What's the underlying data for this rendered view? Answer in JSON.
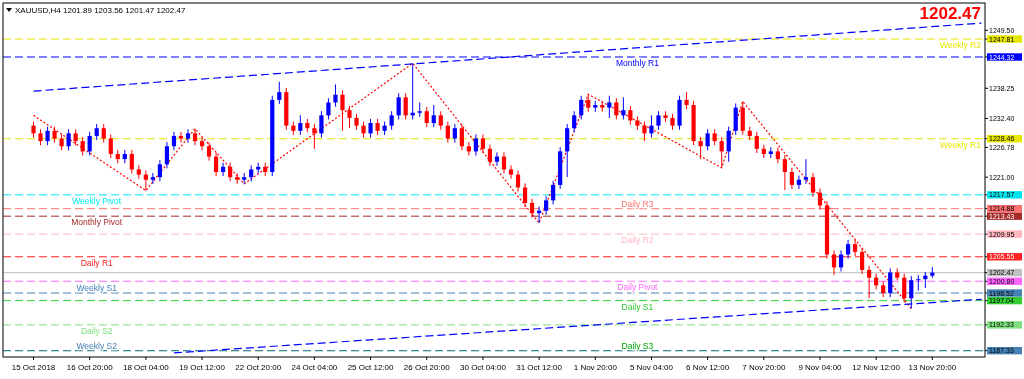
{
  "chart_data": {
    "type": "candlestick",
    "title": "XAUUSD,H4  1201.89 1203.56 1201.47 1202.47",
    "annotations": [
      "1202.47"
    ],
    "categories": [
      "15 Oct 2018",
      null,
      null,
      null,
      null,
      null,
      null,
      null,
      "16 Oct 20:00",
      null,
      null,
      null,
      null,
      null,
      null,
      null,
      "18 Oct 04:00",
      null,
      null,
      null,
      null,
      null,
      null,
      null,
      "19 Oct 12:00",
      null,
      null,
      null,
      null,
      null,
      null,
      null,
      "22 Oct 20:00",
      null,
      null,
      null,
      null,
      null,
      null,
      null,
      "24 Oct 04:00",
      null,
      null,
      null,
      null,
      null,
      null,
      null,
      "25 Oct 12:00",
      null,
      null,
      null,
      null,
      null,
      null,
      null,
      "26 Oct 20:00",
      null,
      null,
      null,
      null,
      null,
      null,
      null,
      "30 Oct 04:00",
      null,
      null,
      null,
      null,
      null,
      null,
      null,
      "31 Oct 12:00",
      null,
      null,
      null,
      null,
      null,
      null,
      null,
      "1 Nov 20:00",
      null,
      null,
      null,
      null,
      null,
      null,
      null,
      "5 Nov 04:00",
      null,
      null,
      null,
      null,
      null,
      null,
      null,
      "6 Nov 12:00",
      null,
      null,
      null,
      null,
      null,
      null,
      null,
      "7 Nov 20:00",
      null,
      null,
      null,
      null,
      null,
      null,
      null,
      "9 Nov 04:00",
      null,
      null,
      null,
      null,
      null,
      null,
      null,
      "12 Nov 12:00",
      null,
      null,
      null,
      null,
      null,
      null,
      null,
      "13 Nov 20:00",
      null,
      null,
      null,
      null,
      null,
      null,
      null
    ],
    "ohlc": [
      [
        1231.0,
        1231.8,
        1228.7,
        1229.5
      ],
      [
        1229.5,
        1230.3,
        1227.2,
        1228.0
      ],
      [
        1228.0,
        1230.8,
        1227.2,
        1230.0
      ],
      [
        1230.0,
        1230.8,
        1227.7,
        1228.5
      ],
      [
        1228.5,
        1229.3,
        1226.2,
        1227.0
      ],
      [
        1227.0,
        1230.3,
        1226.2,
        1229.5
      ],
      [
        1229.5,
        1230.3,
        1227.2,
        1228.0
      ],
      [
        1228.0,
        1228.8,
        1225.2,
        1226.0
      ],
      [
        1226.0,
        1229.8,
        1225.2,
        1229.0
      ],
      [
        1229.0,
        1231.3,
        1228.2,
        1230.5
      ],
      [
        1230.5,
        1231.3,
        1227.7,
        1228.5
      ],
      [
        1228.5,
        1229.3,
        1224.7,
        1225.5
      ],
      [
        1225.5,
        1226.3,
        1223.7,
        1224.5
      ],
      [
        1224.5,
        1226.3,
        1223.7,
        1225.5
      ],
      [
        1225.5,
        1226.3,
        1221.7,
        1222.5
      ],
      [
        1222.5,
        1223.3,
        1220.7,
        1221.5
      ],
      [
        1221.5,
        1222.3,
        1218.4,
        1220.5
      ],
      [
        1220.5,
        1221.8,
        1219.7,
        1221.0
      ],
      [
        1221.0,
        1224.3,
        1220.2,
        1223.5
      ],
      [
        1223.5,
        1227.8,
        1222.7,
        1227.0
      ],
      [
        1227.0,
        1229.8,
        1226.2,
        1229.0
      ],
      [
        1229.0,
        1229.8,
        1227.7,
        1228.5
      ],
      [
        1228.5,
        1230.3,
        1227.7,
        1229.5
      ],
      [
        1229.5,
        1230.4,
        1227.2,
        1228.0
      ],
      [
        1228.0,
        1228.8,
        1226.2,
        1227.0
      ],
      [
        1227.0,
        1227.8,
        1224.2,
        1225.0
      ],
      [
        1225.0,
        1225.8,
        1221.2,
        1222.0
      ],
      [
        1222.0,
        1223.8,
        1221.2,
        1223.0
      ],
      [
        1223.0,
        1223.8,
        1220.2,
        1221.0
      ],
      [
        1221.0,
        1221.8,
        1219.7,
        1220.5
      ],
      [
        1220.5,
        1221.8,
        1219.7,
        1221.0
      ],
      [
        1221.0,
        1223.3,
        1220.2,
        1222.5
      ],
      [
        1222.5,
        1223.8,
        1221.7,
        1223.0
      ],
      [
        1223.0,
        1223.8,
        1221.2,
        1222.0
      ],
      [
        1222.0,
        1236.8,
        1221.2,
        1236.0
      ],
      [
        1236.0,
        1239.5,
        1235.2,
        1237.5
      ],
      [
        1237.5,
        1238.3,
        1230.2,
        1231.0
      ],
      [
        1231.0,
        1231.8,
        1229.2,
        1230.0
      ],
      [
        1230.0,
        1233.0,
        1229.2,
        1231.5
      ],
      [
        1231.5,
        1232.3,
        1229.7,
        1230.5
      ],
      [
        1230.5,
        1231.3,
        1226.5,
        1229.5
      ],
      [
        1229.5,
        1233.8,
        1228.7,
        1233.0
      ],
      [
        1233.0,
        1236.3,
        1232.2,
        1235.5
      ],
      [
        1235.5,
        1239.0,
        1234.7,
        1237.0
      ],
      [
        1237.0,
        1237.8,
        1230.0,
        1234.0
      ],
      [
        1234.0,
        1234.8,
        1230.5,
        1232.5
      ],
      [
        1232.5,
        1233.3,
        1230.2,
        1231.0
      ],
      [
        1231.0,
        1231.8,
        1228.7,
        1229.5
      ],
      [
        1229.5,
        1232.3,
        1228.7,
        1231.5
      ],
      [
        1231.5,
        1232.3,
        1229.2,
        1230.0
      ],
      [
        1230.0,
        1231.8,
        1229.2,
        1231.0
      ],
      [
        1231.0,
        1233.8,
        1230.2,
        1233.0
      ],
      [
        1233.0,
        1237.3,
        1232.2,
        1236.5
      ],
      [
        1236.5,
        1237.3,
        1232.2,
        1233.0
      ],
      [
        1233.0,
        1243.1,
        1232.2,
        1233.5
      ],
      [
        1233.5,
        1235.5,
        1232.7,
        1233.8
      ],
      [
        1233.8,
        1234.6,
        1230.7,
        1231.5
      ],
      [
        1231.5,
        1235.0,
        1230.7,
        1233.0
      ],
      [
        1233.0,
        1233.8,
        1230.2,
        1231.0
      ],
      [
        1231.0,
        1231.8,
        1227.7,
        1228.5
      ],
      [
        1228.5,
        1231.3,
        1227.7,
        1230.5
      ],
      [
        1230.5,
        1231.3,
        1226.2,
        1227.0
      ],
      [
        1227.0,
        1227.8,
        1225.2,
        1226.0
      ],
      [
        1226.0,
        1229.3,
        1225.2,
        1228.5
      ],
      [
        1228.5,
        1229.3,
        1225.7,
        1226.5
      ],
      [
        1226.5,
        1227.3,
        1223.2,
        1224.0
      ],
      [
        1224.0,
        1225.8,
        1223.2,
        1225.0
      ],
      [
        1225.0,
        1225.8,
        1221.7,
        1222.5
      ],
      [
        1222.5,
        1223.3,
        1220.7,
        1221.5
      ],
      [
        1221.5,
        1222.3,
        1218.2,
        1219.0
      ],
      [
        1219.0,
        1219.8,
        1215.2,
        1216.0
      ],
      [
        1216.0,
        1216.8,
        1213.2,
        1214.0
      ],
      [
        1214.0,
        1215.3,
        1212.1,
        1214.5
      ],
      [
        1214.5,
        1217.3,
        1213.7,
        1216.5
      ],
      [
        1216.5,
        1220.3,
        1215.7,
        1219.5
      ],
      [
        1219.5,
        1226.8,
        1218.7,
        1226.0
      ],
      [
        1226.0,
        1231.3,
        1221.0,
        1230.5
      ],
      [
        1230.5,
        1233.8,
        1229.7,
        1233.0
      ],
      [
        1233.0,
        1236.8,
        1232.2,
        1236.0
      ],
      [
        1236.0,
        1237.1,
        1233.7,
        1234.5
      ],
      [
        1234.5,
        1235.8,
        1233.7,
        1235.0
      ],
      [
        1235.0,
        1235.8,
        1233.7,
        1234.5
      ],
      [
        1234.5,
        1236.8,
        1232.5,
        1235.5
      ],
      [
        1235.5,
        1236.3,
        1232.2,
        1233.0
      ],
      [
        1233.0,
        1236.5,
        1232.2,
        1234.0
      ],
      [
        1234.0,
        1234.8,
        1231.2,
        1232.0
      ],
      [
        1232.0,
        1232.8,
        1230.2,
        1231.0
      ],
      [
        1231.0,
        1231.8,
        1228.0,
        1229.5
      ],
      [
        1229.5,
        1233.0,
        1228.7,
        1231.0
      ],
      [
        1231.0,
        1233.8,
        1230.2,
        1233.0
      ],
      [
        1233.0,
        1233.8,
        1231.7,
        1232.5
      ],
      [
        1232.5,
        1233.3,
        1230.2,
        1231.0
      ],
      [
        1231.0,
        1236.8,
        1230.2,
        1236.0
      ],
      [
        1236.0,
        1237.5,
        1234.2,
        1235.0
      ],
      [
        1235.0,
        1235.8,
        1227.2,
        1228.0
      ],
      [
        1228.0,
        1228.8,
        1224.5,
        1227.0
      ],
      [
        1227.0,
        1230.3,
        1226.2,
        1229.5
      ],
      [
        1229.5,
        1230.3,
        1227.2,
        1228.0
      ],
      [
        1228.0,
        1228.8,
        1222.8,
        1226.0
      ],
      [
        1226.0,
        1230.8,
        1224.0,
        1230.0
      ],
      [
        1230.0,
        1235.3,
        1229.2,
        1234.5
      ],
      [
        1234.5,
        1235.7,
        1229.2,
        1230.0
      ],
      [
        1230.0,
        1230.8,
        1228.2,
        1229.0
      ],
      [
        1229.0,
        1229.8,
        1225.7,
        1226.5
      ],
      [
        1226.5,
        1227.3,
        1224.7,
        1225.5
      ],
      [
        1225.5,
        1226.8,
        1224.7,
        1226.0
      ],
      [
        1226.0,
        1226.8,
        1223.7,
        1224.5
      ],
      [
        1224.5,
        1225.3,
        1218.5,
        1222.0
      ],
      [
        1222.0,
        1222.8,
        1218.7,
        1219.5
      ],
      [
        1219.5,
        1221.3,
        1218.7,
        1220.5
      ],
      [
        1220.5,
        1224.5,
        1219.7,
        1221.0
      ],
      [
        1221.0,
        1221.8,
        1217.2,
        1218.0
      ],
      [
        1218.0,
        1218.8,
        1214.7,
        1215.5
      ],
      [
        1215.5,
        1216.3,
        1205.2,
        1206.0
      ],
      [
        1206.0,
        1206.8,
        1202.0,
        1203.5
      ],
      [
        1203.5,
        1206.8,
        1202.7,
        1206.0
      ],
      [
        1206.0,
        1208.8,
        1205.2,
        1208.0
      ],
      [
        1208.0,
        1208.8,
        1205.7,
        1206.5
      ],
      [
        1206.5,
        1207.3,
        1202.2,
        1203.0
      ],
      [
        1203.0,
        1203.8,
        1197.5,
        1201.5
      ],
      [
        1201.5,
        1202.3,
        1199.2,
        1200.0
      ],
      [
        1200.0,
        1200.8,
        1197.7,
        1198.5
      ],
      [
        1198.5,
        1203.3,
        1197.7,
        1202.5
      ],
      [
        1202.5,
        1203.3,
        1201.0,
        1201.5
      ],
      [
        1201.5,
        1202.3,
        1196.7,
        1197.5
      ],
      [
        1197.5,
        1201.8,
        1195.5,
        1201.0
      ],
      [
        1201.0,
        1202.0,
        1199.0,
        1201.2
      ],
      [
        1201.2,
        1202.6,
        1199.5,
        1201.89
      ],
      [
        1201.89,
        1203.56,
        1201.47,
        1202.47
      ],
      null,
      null,
      null,
      null,
      null,
      null,
      null
    ],
    "colors": [
      "#ff0000",
      "#ff0000",
      "#0000ff",
      "#ff0000",
      "#ff0000",
      "#0000ff",
      "#ff0000",
      "#ff0000",
      "#0000ff",
      "#0000ff",
      "#ff0000",
      "#ff0000",
      "#ff0000",
      "#0000ff",
      "#ff0000",
      "#ff0000",
      "#ff0000",
      "#0000ff",
      "#0000ff",
      "#0000ff",
      "#0000ff",
      "#ff0000",
      "#0000ff",
      "#ff0000",
      "#ff0000",
      "#ff0000",
      "#ff0000",
      "#0000ff",
      "#ff0000",
      "#ff0000",
      "#0000ff",
      "#0000ff",
      "#0000ff",
      "#ff0000",
      "#0000ff",
      "#0000ff",
      "#ff0000",
      "#ff0000",
      "#0000ff",
      "#ff0000",
      "#ff0000",
      "#0000ff",
      "#0000ff",
      "#0000ff",
      "#ff0000",
      "#ff0000",
      "#ff0000",
      "#ff0000",
      "#0000ff",
      "#ff0000",
      "#0000ff",
      "#0000ff",
      "#0000ff",
      "#ff0000",
      "#0000ff",
      "#0000ff",
      "#ff0000",
      "#0000ff",
      "#ff0000",
      "#ff0000",
      "#0000ff",
      "#ff0000",
      "#ff0000",
      "#0000ff",
      "#ff0000",
      "#ff0000",
      "#0000ff",
      "#ff0000",
      "#ff0000",
      "#ff0000",
      "#ff0000",
      "#ff0000",
      "#0000ff",
      "#0000ff",
      "#0000ff",
      "#0000ff",
      "#0000ff",
      "#0000ff",
      "#0000ff",
      "#ff0000",
      "#0000ff",
      "#ff0000",
      "#0000ff",
      "#ff0000",
      "#0000ff",
      "#ff0000",
      "#ff0000",
      "#ff0000",
      "#0000ff",
      "#0000ff",
      "#ff0000",
      "#ff0000",
      "#0000ff",
      "#ff0000",
      "#ff0000",
      "#ff0000",
      "#0000ff",
      "#ff0000",
      "#ff0000",
      "#0000ff",
      "#0000ff",
      "#ff0000",
      "#ff0000",
      "#ff0000",
      "#ff0000",
      "#0000ff",
      "#ff0000",
      "#ff0000",
      "#ff0000",
      "#0000ff",
      "#0000ff",
      "#ff0000",
      "#ff0000",
      "#ff0000",
      "#ff0000",
      "#0000ff",
      "#0000ff",
      "#ff0000",
      "#ff0000",
      "#ff0000",
      "#ff0000",
      "#ff0000",
      "#0000ff",
      "#ff0000",
      "#ff0000",
      "#0000ff",
      "#0000ff",
      "#0000ff",
      "#0000ff",
      null,
      null,
      null,
      null,
      null,
      null,
      null
    ],
    "series": [
      {
        "type": "line",
        "color": "#ff0000",
        "line_style": "dotted",
        "values": [
          1233.0,
          null,
          null,
          null,
          null,
          null,
          null,
          null,
          null,
          null,
          null,
          null,
          null,
          null,
          null,
          null,
          1218.4,
          null,
          null,
          null,
          null,
          null,
          null,
          1230.4,
          null,
          null,
          null,
          null,
          null,
          null,
          1219.7,
          null,
          null,
          null,
          null,
          null,
          null,
          null,
          null,
          null,
          null,
          null,
          null,
          null,
          null,
          null,
          null,
          null,
          null,
          null,
          null,
          null,
          null,
          null,
          1243.1,
          null,
          null,
          null,
          null,
          null,
          null,
          null,
          null,
          null,
          null,
          null,
          null,
          null,
          null,
          null,
          null,
          null,
          1212.1,
          null,
          null,
          null,
          null,
          null,
          null,
          1237.1,
          null,
          null,
          null,
          null,
          null,
          null,
          null,
          null,
          null,
          null,
          null,
          null,
          null,
          null,
          null,
          null,
          null,
          null,
          1222.8,
          null,
          null,
          1235.7,
          null,
          null,
          null,
          null,
          null,
          null,
          null,
          null,
          null,
          null,
          null,
          null,
          null,
          null,
          null,
          null,
          null,
          null,
          null,
          null,
          null,
          null,
          null,
          1195.5,
          null,
          null,
          null,
          null,
          null,
          null,
          null,
          null,
          null,
          null
        ]
      },
      {
        "type": "line",
        "color": "#0000ff",
        "line_style": "dashed",
        "values": [
          1237.7,
          null,
          null,
          null,
          null,
          null,
          null,
          null,
          null,
          null,
          null,
          null,
          null,
          null,
          null,
          null,
          null,
          null,
          null,
          null,
          null,
          null,
          null,
          null,
          null,
          null,
          null,
          null,
          null,
          null,
          null,
          null,
          null,
          null,
          null,
          null,
          null,
          null,
          null,
          null,
          null,
          null,
          null,
          null,
          null,
          null,
          null,
          null,
          null,
          null,
          null,
          null,
          null,
          null,
          null,
          null,
          null,
          null,
          null,
          null,
          null,
          null,
          null,
          null,
          null,
          null,
          null,
          null,
          null,
          null,
          null,
          null,
          null,
          null,
          null,
          null,
          null,
          null,
          null,
          null,
          null,
          null,
          null,
          null,
          null,
          null,
          null,
          null,
          null,
          null,
          null,
          null,
          null,
          null,
          null,
          null,
          null,
          null,
          null,
          null,
          null,
          null,
          null,
          null,
          null,
          null,
          null,
          null,
          null,
          null,
          null,
          null,
          null,
          null,
          null,
          null,
          null,
          null,
          null,
          null,
          null,
          null,
          null,
          null,
          null,
          null,
          null,
          null,
          null,
          null,
          null,
          null,
          null,
          null,
          null,
          1250.9
        ]
      },
      {
        "type": "line",
        "color": "#0000ff",
        "line_style": "dashed",
        "values": [
          null,
          null,
          null,
          null,
          null,
          null,
          null,
          null,
          null,
          null,
          null,
          null,
          null,
          null,
          null,
          null,
          null,
          null,
          null,
          null,
          1186.9,
          null,
          null,
          null,
          null,
          null,
          null,
          null,
          null,
          null,
          null,
          null,
          null,
          null,
          null,
          null,
          null,
          null,
          null,
          null,
          null,
          null,
          null,
          null,
          null,
          null,
          null,
          null,
          null,
          null,
          null,
          null,
          null,
          null,
          null,
          null,
          null,
          null,
          null,
          null,
          null,
          null,
          null,
          null,
          null,
          null,
          null,
          null,
          null,
          null,
          null,
          null,
          null,
          null,
          null,
          null,
          null,
          null,
          null,
          null,
          null,
          null,
          null,
          null,
          null,
          null,
          null,
          null,
          null,
          null,
          null,
          null,
          null,
          null,
          null,
          null,
          null,
          null,
          null,
          null,
          null,
          null,
          null,
          null,
          null,
          null,
          null,
          null,
          null,
          null,
          null,
          null,
          null,
          null,
          null,
          null,
          null,
          null,
          null,
          null,
          null,
          null,
          null,
          null,
          null,
          null,
          null,
          null,
          null,
          null,
          null,
          null,
          null,
          null,
          null,
          1197.3
        ]
      }
    ],
    "ylim": [
      1186.1,
      1254.8
    ],
    "yticks": [
      {
        "value": 1187.33,
        "label": "1187.33"
      },
      {
        "value": 1192.33,
        "label": "1192.33"
      },
      {
        "value": 1197.04,
        "label": "1197.04"
      },
      {
        "value": 1198.52,
        "label": "1198.52"
      },
      {
        "value": 1200.8,
        "label": "1200.80"
      },
      {
        "value": 1202.47,
        "label": "1202.47"
      },
      {
        "value": 1205.55,
        "label": "1205.55"
      },
      {
        "value": 1209.95,
        "label": "1209.95"
      },
      {
        "value": 1213.43,
        "label": "1213.43"
      },
      {
        "value": 1214.88,
        "label": "1214.88"
      },
      {
        "value": 1217.57,
        "label": "1217.57"
      },
      {
        "value": 1221.0,
        "label": "1221.00"
      },
      {
        "value": 1226.78,
        "label": "1226.78"
      },
      {
        "value": 1228.46,
        "label": "1228.46"
      },
      {
        "value": 1232.4,
        "label": "1232.40"
      },
      {
        "value": 1238.25,
        "label": "1238.25"
      },
      {
        "value": 1244.32,
        "label": "1244.32"
      },
      {
        "value": 1247.81,
        "label": "1247.81"
      },
      {
        "value": 1249.5,
        "label": "1249.50"
      }
    ],
    "ref_lines": [
      {
        "axis": "y",
        "value": 1247.81,
        "label": "Weekly R2",
        "color": "#e6e600",
        "line_style": "dashed"
      },
      {
        "axis": "y",
        "value": 1244.32,
        "label": "Monthly R1",
        "color": "#0000ff",
        "line_style": "dashed"
      },
      {
        "axis": "y",
        "value": 1228.46,
        "label": "Weekly R1",
        "color": "#e6e600",
        "line_style": "dashed"
      },
      {
        "axis": "y",
        "value": 1217.57,
        "label": "Weekly Pivot",
        "color": "#00e5ee",
        "line_style": "dashed"
      },
      {
        "axis": "y",
        "value": 1214.88,
        "label": "Daily R3",
        "color": "#ff7070",
        "line_style": "dashed"
      },
      {
        "axis": "y",
        "value": 1213.43,
        "label": "Monthly Pivot",
        "color": "#a52a2a",
        "line_style": "dashed"
      },
      {
        "axis": "y",
        "value": 1209.95,
        "label": "Daily R2",
        "color": "#ffb6c1",
        "line_style": "dashed"
      },
      {
        "axis": "y",
        "value": 1205.55,
        "label": "Daily R1",
        "color": "#ff2020",
        "line_style": "dashed"
      },
      {
        "axis": "y",
        "value": 1202.47,
        "label": null,
        "color": "#c0c0c0",
        "line_style": "solid"
      },
      {
        "axis": "y",
        "value": 1200.8,
        "label": "Daily Pivot",
        "color": "#ff66ff",
        "line_style": "dashed"
      },
      {
        "axis": "y",
        "value": 1198.52,
        "label": "Weekly S1",
        "color": "#4682b4",
        "line_style": "dashed"
      },
      {
        "axis": "y",
        "value": 1197.04,
        "label": "Daily S1",
        "color": "#32cd32",
        "line_style": "dashed"
      },
      {
        "axis": "y",
        "value": 1192.33,
        "label": "Daily S2",
        "color": "#7ee07e",
        "line_style": "dashed"
      },
      {
        "axis": "y",
        "value": 1187.33,
        "label": "Daily S3",
        "color": "#00a000",
        "line_style": "dashed"
      },
      {
        "axis": "y",
        "value": 1187.33,
        "label": "Weekly S2",
        "color": "#4682b4",
        "line_style": "dashed"
      }
    ]
  }
}
